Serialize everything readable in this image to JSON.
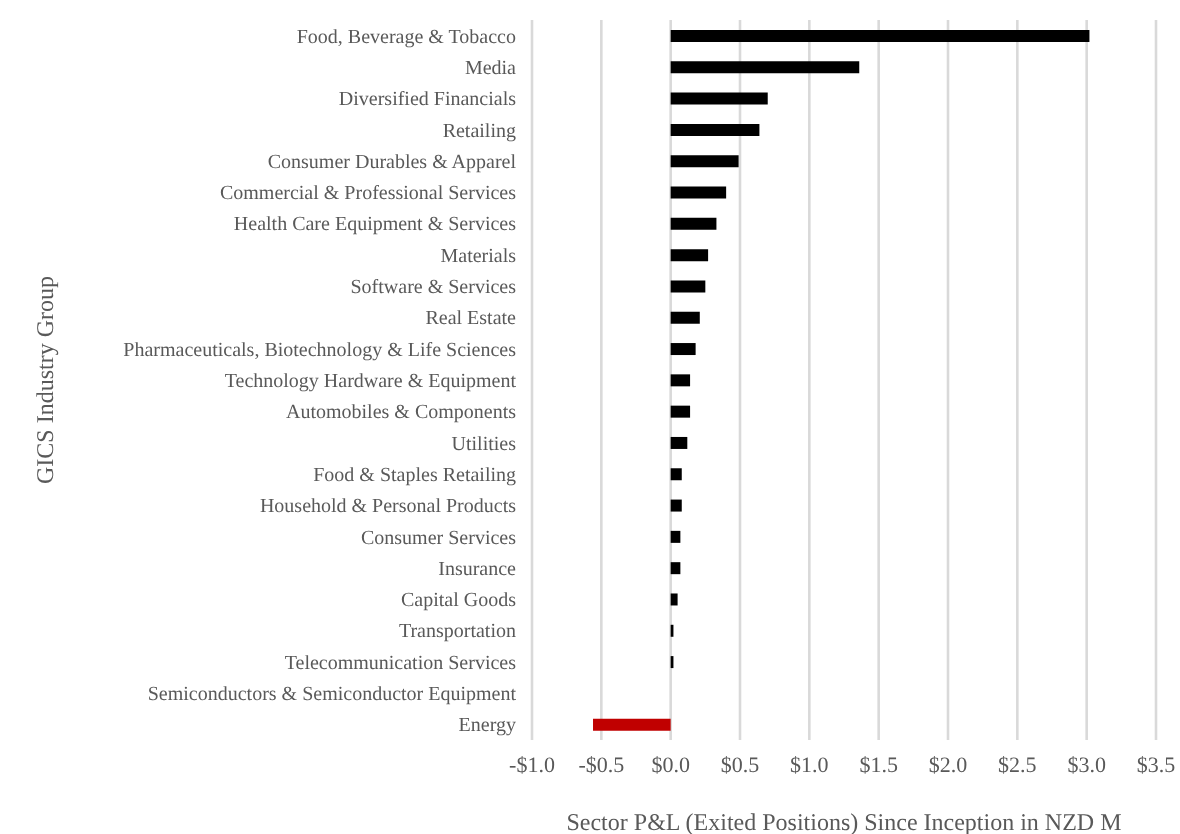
{
  "chart_data": {
    "type": "bar",
    "orientation": "horizontal",
    "xlabel": "Sector P&L (Exited Positions) Since Inception  in NZD M",
    "ylabel": "GICS Industry  Group",
    "categories": [
      "Food, Beverage & Tobacco",
      "Media",
      "Diversified  Financials",
      "Retailing",
      "Consumer Durables & Apparel",
      "Commercial & Professional Services",
      "Health Care Equipment & Services",
      "Materials",
      "Software & Services",
      "Real Estate",
      "Pharmaceuticals, Biotechnology & Life Sciences",
      "Technology Hardware & Equipment",
      "Automobiles & Components",
      "Utilities",
      "Food & Staples Retailing",
      "Household & Personal Products",
      "Consumer Services",
      "Insurance",
      "Capital Goods",
      "Transportation",
      "Telecommunication Services",
      "Semiconductors & Semiconductor Equipment",
      "Energy"
    ],
    "values": [
      3.02,
      1.36,
      0.7,
      0.64,
      0.49,
      0.4,
      0.33,
      0.27,
      0.25,
      0.21,
      0.18,
      0.14,
      0.14,
      0.12,
      0.08,
      0.08,
      0.07,
      0.07,
      0.05,
      0.02,
      0.02,
      0,
      -0.56
    ],
    "colors": [
      "#000000",
      "#000000",
      "#000000",
      "#000000",
      "#000000",
      "#000000",
      "#000000",
      "#000000",
      "#000000",
      "#000000",
      "#000000",
      "#000000",
      "#000000",
      "#000000",
      "#000000",
      "#000000",
      "#000000",
      "#000000",
      "#000000",
      "#000000",
      "#000000",
      "#000000",
      "#c00000"
    ],
    "xlim": [
      -1.0,
      3.5
    ],
    "xticks": [
      {
        "value": -1,
        "label": "-$1.0"
      },
      {
        "value": -0.5,
        "label": "-$0.5"
      },
      {
        "value": 0,
        "label": "$0.0"
      },
      {
        "value": 0.5,
        "label": "$0.5"
      },
      {
        "value": 1,
        "label": "$1.0"
      },
      {
        "value": 1.5,
        "label": "$1.5"
      },
      {
        "value": 2,
        "label": "$2.0"
      },
      {
        "value": 2.5,
        "label": "$2.5"
      },
      {
        "value": 3,
        "label": "$3.0"
      },
      {
        "value": 3.5,
        "label": "$3.5"
      }
    ],
    "grid": "x",
    "legend": false
  }
}
